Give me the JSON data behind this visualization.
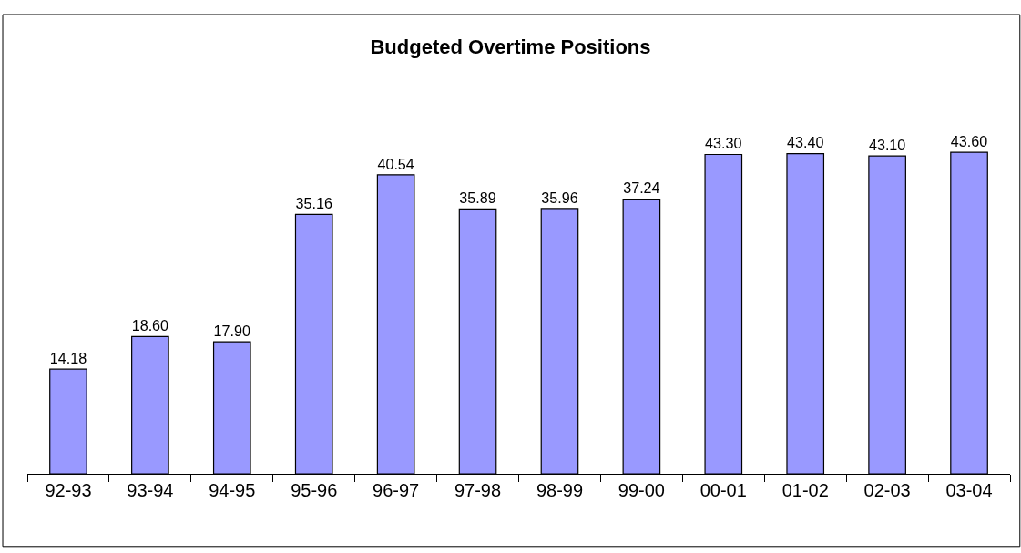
{
  "chart_data": {
    "type": "bar",
    "title": "Budgeted Overtime Positions",
    "categories": [
      "92-93",
      "93-94",
      "94-95",
      "95-96",
      "96-97",
      "97-98",
      "98-99",
      "99-00",
      "00-01",
      "01-02",
      "02-03",
      "03-04"
    ],
    "values": [
      14.18,
      18.6,
      17.9,
      35.16,
      40.54,
      35.89,
      35.96,
      37.24,
      43.3,
      43.4,
      43.1,
      43.6
    ],
    "value_labels": [
      "14.18",
      "18.60",
      "17.90",
      "35.16",
      "40.54",
      "35.89",
      "35.96",
      "37.24",
      "43.30",
      "43.40",
      "43.10",
      "43.60"
    ],
    "color": "#9999ff"
  }
}
